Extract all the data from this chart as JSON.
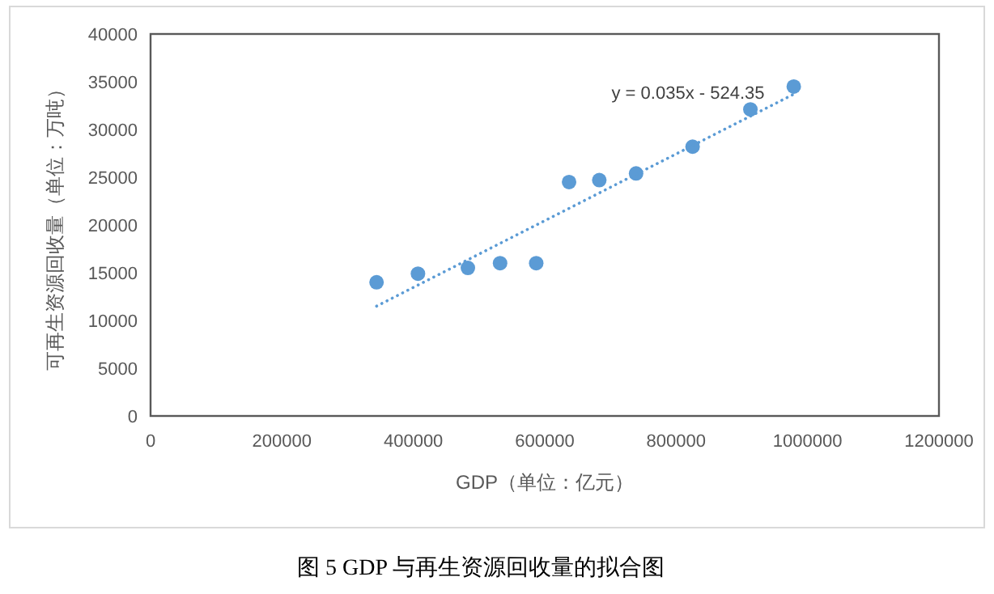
{
  "chart_data": {
    "type": "scatter",
    "title": "图 5 GDP 与再生资源回收量的拟合图",
    "xlabel": "GDP（单位：亿元）",
    "ylabel": "可再生资源回收量（单位：万吨）",
    "x": [
      344000,
      407000,
      483000,
      532000,
      587000,
      637000,
      683000,
      739000,
      825000,
      913000,
      979000
    ],
    "series": [
      {
        "type": "scatter",
        "color": "#5b9bd5",
        "marker": "circle",
        "values": [
          14000,
          14900,
          15500,
          16000,
          16000,
          24500,
          24700,
          25400,
          28200,
          32100,
          34500
        ]
      },
      {
        "type": "line",
        "color": "#5b9bd5",
        "line_style": "dotted",
        "x": [
          344000,
          979000
        ],
        "values": [
          11500,
          33700
        ]
      }
    ],
    "annotations": [
      "y = 0.035x - 524.35"
    ],
    "xlim": [
      0,
      1200000
    ],
    "xticks": [
      0,
      200000,
      400000,
      600000,
      800000,
      1000000,
      1200000
    ],
    "ylim": [
      0,
      40000
    ],
    "yticks": [
      0,
      5000,
      10000,
      15000,
      20000,
      25000,
      30000,
      35000,
      40000
    ],
    "grid": false
  }
}
